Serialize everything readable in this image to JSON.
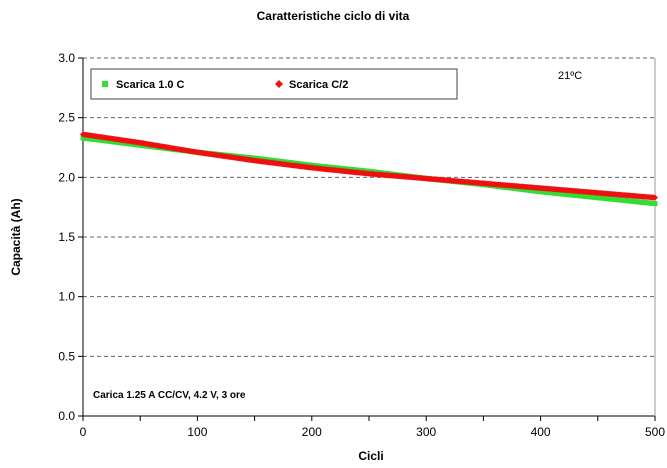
{
  "chart_data": {
    "type": "scatter",
    "title": "Caratteristiche ciclo di vita",
    "xlabel": "Cicli",
    "ylabel": "Capacità (Ah)",
    "xlim": [
      0,
      500
    ],
    "ylim": [
      0,
      3.0
    ],
    "x_ticks": [
      "0",
      "100",
      "200",
      "300",
      "400",
      "500"
    ],
    "y_ticks": [
      "0.0",
      "0.5",
      "1.0",
      "1.5",
      "2.0",
      "2.5",
      "3.0"
    ],
    "grid": "horizontal-dashed",
    "legend_position": "top-left",
    "annotations": {
      "temperature": "21ºC",
      "charge_condition": "Carica 1.25 A CC/CV, 4.2 V, 3 ore"
    },
    "series": [
      {
        "name": "Scarica 1.0 C",
        "color": "#33dd33",
        "marker": "square",
        "x": [
          0,
          50,
          100,
          150,
          200,
          250,
          300,
          350,
          400,
          450,
          500
        ],
        "y": [
          2.33,
          2.27,
          2.21,
          2.16,
          2.1,
          2.05,
          1.99,
          1.94,
          1.88,
          1.83,
          1.78
        ]
      },
      {
        "name": "Scarica C/2",
        "color": "#ee1111",
        "marker": "diamond",
        "x": [
          0,
          50,
          100,
          150,
          200,
          250,
          300,
          350,
          400,
          450,
          500
        ],
        "y": [
          2.36,
          2.29,
          2.21,
          2.14,
          2.08,
          2.03,
          1.99,
          1.95,
          1.91,
          1.87,
          1.83
        ]
      }
    ]
  }
}
